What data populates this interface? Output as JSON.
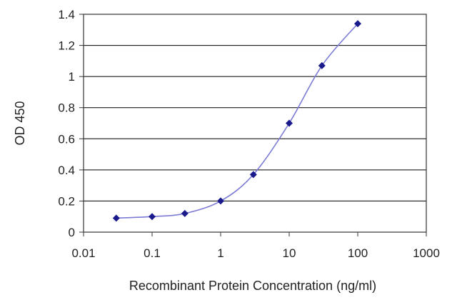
{
  "chart_data": {
    "type": "line",
    "title": "",
    "xlabel": "Recombinant Protein Concentration (ng/ml)",
    "ylabel": "OD 450",
    "x_scale": "log",
    "xlim": [
      0.01,
      1000
    ],
    "ylim": [
      0,
      1.4
    ],
    "x_ticks": [
      "0.01",
      "0.1",
      "1",
      "10",
      "100",
      "1000"
    ],
    "y_ticks": [
      "0",
      "0.2",
      "0.4",
      "0.6",
      "0.8",
      "1",
      "1.2",
      "1.4"
    ],
    "grid": "horizontal",
    "legend": "none",
    "series": [
      {
        "color": "#1a1a8c",
        "x": [
          0.03,
          0.1,
          0.3,
          1,
          3,
          10,
          30,
          100
        ],
        "y": [
          0.09,
          0.1,
          0.12,
          0.2,
          0.37,
          0.7,
          1.07,
          1.34
        ]
      }
    ],
    "colors": {
      "line": "#7b7bd6",
      "marker": "#1a1a8c",
      "grid": "#000000",
      "frame": "#333333"
    }
  }
}
